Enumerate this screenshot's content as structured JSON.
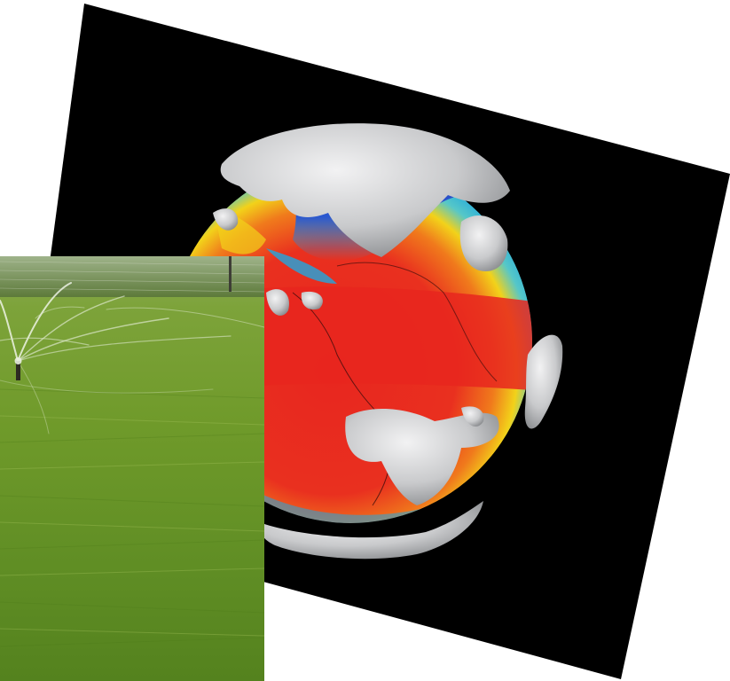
{
  "scene": {
    "description_items": [
      "globe-visualization",
      "lawn-sprinkler-photo"
    ]
  },
  "colors": {
    "panel_background": "#000000",
    "ocean_cold": "#2a3fb8",
    "ocean_cool": "#1fa7e0",
    "ocean_mild": "#f2d21a",
    "ocean_warm": "#f07a1c",
    "ocean_hot": "#e8261f",
    "cloud": "#c9cacc",
    "grass": "#6f9a2a",
    "sky_haze": "#d9e2c8"
  }
}
